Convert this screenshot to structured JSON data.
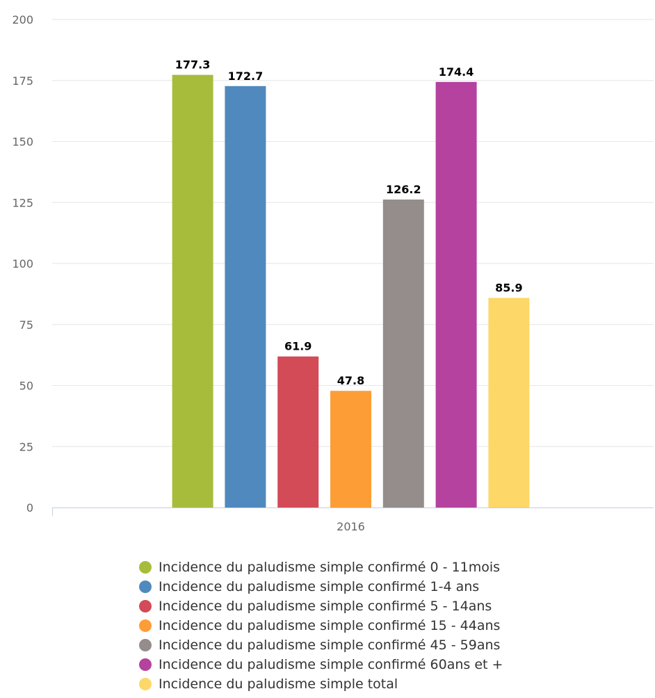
{
  "chart_data": {
    "type": "bar",
    "categories": [
      "2016"
    ],
    "ylim": [
      0,
      200
    ],
    "yticks": [
      0,
      25,
      50,
      75,
      100,
      125,
      150,
      175,
      200
    ],
    "grid": true,
    "legend_position": "bottom",
    "data_labels": true,
    "series": [
      {
        "name": "Incidence du paludisme simple confirmé 0 - 11mois",
        "values": [
          177.3
        ],
        "label": "177.3",
        "color": "#a8bc3c"
      },
      {
        "name": "Incidence du paludisme simple confirmé 1-4 ans",
        "values": [
          172.7
        ],
        "label": "172.7",
        "color": "#5089be"
      },
      {
        "name": "Incidence du paludisme simple confirmé 5 - 14ans",
        "values": [
          61.9
        ],
        "label": "61.9",
        "color": "#d24b57"
      },
      {
        "name": "Incidence du paludisme simple confirmé 15 - 44ans",
        "values": [
          47.8
        ],
        "label": "47.8",
        "color": "#fd9d36"
      },
      {
        "name": "Incidence du paludisme simple confirmé 45 - 59ans",
        "values": [
          126.2
        ],
        "label": "126.2",
        "color": "#948d8c"
      },
      {
        "name": "Incidence du paludisme simple confirmé 60ans et +",
        "values": [
          174.4
        ],
        "label": "174.4",
        "color": "#b5429f"
      },
      {
        "name": "Incidence du paludisme simple total",
        "values": [
          85.9
        ],
        "label": "85.9",
        "color": "#fdd768"
      }
    ]
  }
}
